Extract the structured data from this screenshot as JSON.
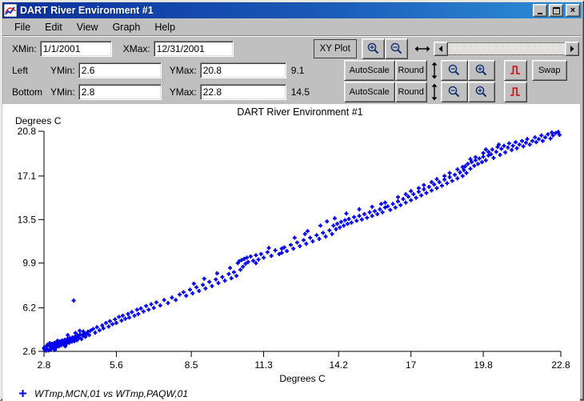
{
  "window": {
    "title": "DART River Environment #1",
    "buttons": {
      "minimize": "minimize",
      "maximize": "maximize",
      "close": "close"
    }
  },
  "menu": {
    "items": [
      "File",
      "Edit",
      "View",
      "Graph",
      "Help"
    ]
  },
  "toolbar": {
    "row1": {
      "xmin_label": "XMin:",
      "xmin_value": "1/1/2001",
      "xmax_label": "XMax:",
      "xmax_value": "12/31/2001",
      "xy_plot_label": "XY Plot"
    },
    "row2": {
      "axis_label": "Left",
      "ymin_label": "YMin:",
      "ymin_value": "2.6",
      "ymax_label": "YMax:",
      "ymax_value": "20.8",
      "cursor_value": "9.1",
      "autoscale_label": "AutoScale",
      "round_label": "Round",
      "swap_label": "Swap"
    },
    "row3": {
      "axis_label": "Bottom",
      "ymin_label": "YMin:",
      "ymin_value": "2.8",
      "ymax_label": "YMax:",
      "ymax_value": "22.8",
      "cursor_value": "14.5",
      "autoscale_label": "AutoScale",
      "round_label": "Round"
    },
    "icons": {
      "zoom_in": "magnifier-plus",
      "zoom_out": "magnifier-minus",
      "h_range": "left-right-arrow",
      "v_range": "up-down-arrow",
      "timeseries": "red-step-waveform",
      "scroll_left": "left-triangle",
      "scroll_right": "right-triangle"
    }
  },
  "chart_data": {
    "type": "scatter",
    "title": "DART River Environment #1",
    "xlabel": "Degrees C",
    "ylabel": "Degrees C",
    "xlim": [
      2.8,
      22.8
    ],
    "ylim": [
      2.6,
      20.8
    ],
    "xticks": [
      2.8,
      5.6,
      8.5,
      11.3,
      14.2,
      17,
      19.8,
      22.8
    ],
    "yticks": [
      2.6,
      6.2,
      9.9,
      13.5,
      17.1,
      20.8
    ],
    "legend": "WTmp,MCN,01 vs WTmp,PAQW,01",
    "marker_color": "#0000ee",
    "grid": false,
    "points": [
      [
        2.8,
        2.9
      ],
      [
        2.85,
        2.72
      ],
      [
        2.9,
        3.05
      ],
      [
        2.92,
        2.8
      ],
      [
        3.0,
        3.1
      ],
      [
        2.98,
        2.68
      ],
      [
        3.05,
        2.95
      ],
      [
        3.1,
        3.22
      ],
      [
        3.08,
        2.78
      ],
      [
        3.15,
        3.0
      ],
      [
        3.2,
        3.3
      ],
      [
        3.18,
        2.88
      ],
      [
        3.25,
        3.12
      ],
      [
        3.3,
        3.35
      ],
      [
        3.28,
        2.95
      ],
      [
        3.35,
        3.18
      ],
      [
        3.4,
        3.42
      ],
      [
        3.38,
        3.02
      ],
      [
        3.45,
        3.25
      ],
      [
        3.5,
        3.5
      ],
      [
        3.48,
        3.12
      ],
      [
        3.55,
        3.3
      ],
      [
        3.6,
        3.55
      ],
      [
        3.58,
        3.18
      ],
      [
        3.65,
        3.4
      ],
      [
        3.7,
        3.62
      ],
      [
        3.68,
        3.25
      ],
      [
        3.75,
        3.48
      ],
      [
        3.8,
        3.7
      ],
      [
        3.78,
        3.32
      ],
      [
        3.85,
        3.55
      ],
      [
        3.9,
        3.75
      ],
      [
        3.88,
        3.4
      ],
      [
        3.95,
        3.62
      ],
      [
        4.0,
        3.82
      ],
      [
        3.98,
        3.45
      ],
      [
        4.05,
        3.7
      ],
      [
        4.1,
        3.92
      ],
      [
        4.08,
        3.52
      ],
      [
        4.15,
        3.75
      ],
      [
        4.2,
        4.0
      ],
      [
        4.25,
        3.62
      ],
      [
        4.3,
        3.9
      ],
      [
        4.35,
        4.12
      ],
      [
        4.4,
        3.8
      ],
      [
        4.45,
        4.05
      ],
      [
        4.5,
        4.22
      ],
      [
        4.55,
        3.95
      ],
      [
        4.6,
        4.3
      ],
      [
        3.22,
        2.72
      ],
      [
        3.62,
        3.02
      ],
      [
        2.88,
        2.65
      ],
      [
        4.32,
        4.25
      ],
      [
        3.02,
        3.28
      ],
      [
        4.02,
        4.12
      ],
      [
        2.95,
        3.18
      ],
      [
        3.32,
        3.48
      ],
      [
        3.72,
        3.95
      ],
      [
        4.18,
        4.3
      ],
      [
        2.82,
        2.78
      ],
      [
        3.95,
        6.8
      ],
      [
        4.7,
        4.45
      ],
      [
        4.78,
        4.15
      ],
      [
        4.85,
        4.6
      ],
      [
        4.95,
        4.35
      ],
      [
        5.05,
        4.75
      ],
      [
        5.1,
        4.5
      ],
      [
        5.2,
        4.95
      ],
      [
        5.3,
        4.65
      ],
      [
        5.35,
        5.1
      ],
      [
        5.45,
        4.85
      ],
      [
        5.55,
        5.25
      ],
      [
        5.6,
        4.95
      ],
      [
        5.7,
        5.45
      ],
      [
        5.8,
        5.15
      ],
      [
        5.85,
        5.55
      ],
      [
        5.95,
        5.3
      ],
      [
        6.05,
        5.7
      ],
      [
        6.1,
        5.4
      ],
      [
        6.2,
        5.85
      ],
      [
        6.3,
        5.55
      ],
      [
        6.4,
        6.05
      ],
      [
        6.45,
        5.7
      ],
      [
        6.55,
        6.15
      ],
      [
        6.65,
        5.9
      ],
      [
        6.75,
        6.35
      ],
      [
        6.85,
        6.05
      ],
      [
        6.95,
        6.5
      ],
      [
        7.05,
        6.2
      ],
      [
        7.15,
        6.65
      ],
      [
        7.3,
        6.4
      ],
      [
        7.45,
        6.85
      ],
      [
        7.6,
        6.6
      ],
      [
        7.75,
        7.05
      ],
      [
        7.9,
        6.85
      ],
      [
        8.05,
        7.3
      ],
      [
        8.2,
        7.5
      ],
      [
        8.3,
        7.2
      ],
      [
        8.45,
        7.7
      ],
      [
        8.55,
        7.4
      ],
      [
        8.7,
        7.9
      ],
      [
        8.8,
        7.6
      ],
      [
        8.95,
        8.1
      ],
      [
        9.05,
        7.8
      ],
      [
        9.2,
        8.35
      ],
      [
        9.3,
        8.0
      ],
      [
        9.45,
        8.55
      ],
      [
        9.55,
        8.25
      ],
      [
        9.7,
        8.75
      ],
      [
        9.8,
        8.45
      ],
      [
        9.95,
        9.0
      ],
      [
        10.05,
        8.65
      ],
      [
        10.15,
        9.15
      ],
      [
        10.25,
        8.85
      ],
      [
        10.3,
        9.9
      ],
      [
        10.35,
        10.05
      ],
      [
        10.4,
        9.35
      ],
      [
        10.45,
        10.15
      ],
      [
        10.5,
        9.6
      ],
      [
        10.55,
        10.25
      ],
      [
        10.6,
        9.85
      ],
      [
        10.65,
        10.35
      ],
      [
        10.7,
        10.0
      ],
      [
        10.8,
        10.45
      ],
      [
        10.9,
        10.1
      ],
      [
        11.0,
        10.55
      ],
      [
        11.1,
        10.2
      ],
      [
        11.2,
        10.65
      ],
      [
        11.3,
        10.35
      ],
      [
        11.45,
        10.8
      ],
      [
        11.6,
        10.5
      ],
      [
        11.75,
        10.95
      ],
      [
        11.9,
        10.65
      ],
      [
        12.0,
        11.1
      ],
      [
        9.0,
        8.6
      ],
      [
        9.5,
        9.05
      ],
      [
        10.0,
        9.5
      ],
      [
        11.0,
        9.9
      ],
      [
        11.5,
        11.15
      ],
      [
        8.6,
        8.2
      ],
      [
        12.0,
        10.75
      ],
      [
        12.1,
        11.2
      ],
      [
        12.2,
        10.9
      ],
      [
        12.35,
        11.4
      ],
      [
        12.45,
        11.1
      ],
      [
        12.6,
        11.6
      ],
      [
        12.7,
        11.3
      ],
      [
        12.85,
        11.8
      ],
      [
        12.95,
        11.5
      ],
      [
        13.1,
        12.0
      ],
      [
        13.2,
        11.7
      ],
      [
        13.35,
        12.2
      ],
      [
        13.45,
        11.9
      ],
      [
        13.6,
        12.4
      ],
      [
        13.7,
        12.1
      ],
      [
        13.85,
        12.6
      ],
      [
        13.95,
        12.3
      ],
      [
        14.0,
        13.0
      ],
      [
        14.1,
        12.7
      ],
      [
        14.15,
        13.15
      ],
      [
        14.25,
        12.85
      ],
      [
        14.3,
        13.3
      ],
      [
        14.4,
        13.0
      ],
      [
        14.45,
        13.45
      ],
      [
        14.55,
        13.15
      ],
      [
        14.6,
        13.55
      ],
      [
        14.7,
        13.25
      ],
      [
        14.8,
        13.7
      ],
      [
        14.9,
        13.4
      ],
      [
        15.0,
        13.8
      ],
      [
        15.1,
        13.5
      ],
      [
        15.2,
        13.95
      ],
      [
        15.3,
        13.65
      ],
      [
        15.4,
        14.1
      ],
      [
        15.5,
        13.8
      ],
      [
        15.6,
        14.2
      ],
      [
        15.7,
        13.95
      ],
      [
        15.8,
        14.35
      ],
      [
        15.9,
        14.1
      ],
      [
        16.0,
        14.5
      ],
      [
        12.5,
        12.0
      ],
      [
        13.0,
        12.55
      ],
      [
        13.5,
        13.0
      ],
      [
        14.5,
        14.0
      ],
      [
        15.0,
        14.35
      ],
      [
        15.5,
        14.55
      ],
      [
        12.9,
        12.3
      ],
      [
        14.05,
        13.6
      ],
      [
        15.85,
        14.8
      ],
      [
        13.75,
        13.35
      ],
      [
        16.0,
        14.9
      ],
      [
        16.1,
        14.6
      ],
      [
        16.2,
        14.3
      ],
      [
        16.3,
        14.8
      ],
      [
        16.4,
        14.5
      ],
      [
        16.5,
        15.0
      ],
      [
        16.6,
        14.7
      ],
      [
        16.7,
        15.2
      ],
      [
        16.8,
        14.9
      ],
      [
        16.9,
        15.4
      ],
      [
        17.0,
        15.1
      ],
      [
        17.1,
        15.6
      ],
      [
        17.2,
        15.3
      ],
      [
        17.3,
        15.8
      ],
      [
        17.4,
        15.5
      ],
      [
        17.5,
        16.0
      ],
      [
        17.6,
        15.7
      ],
      [
        17.7,
        16.2
      ],
      [
        17.8,
        15.9
      ],
      [
        17.9,
        16.4
      ],
      [
        18.0,
        16.1
      ],
      [
        18.1,
        16.6
      ],
      [
        18.2,
        16.3
      ],
      [
        18.3,
        16.8
      ],
      [
        18.4,
        16.5
      ],
      [
        18.5,
        17.0
      ],
      [
        18.6,
        16.7
      ],
      [
        18.7,
        17.2
      ],
      [
        18.8,
        16.9
      ],
      [
        18.9,
        17.4
      ],
      [
        19.0,
        17.1
      ],
      [
        19.05,
        17.6
      ],
      [
        19.1,
        17.9
      ],
      [
        19.15,
        17.35
      ],
      [
        19.2,
        18.1
      ],
      [
        19.3,
        17.7
      ],
      [
        19.35,
        18.25
      ],
      [
        19.45,
        17.95
      ],
      [
        19.5,
        18.4
      ],
      [
        19.6,
        18.1
      ],
      [
        19.65,
        18.55
      ],
      [
        19.75,
        18.25
      ],
      [
        19.8,
        18.7
      ],
      [
        19.9,
        18.4
      ],
      [
        20.0,
        18.8
      ],
      [
        16.5,
        15.35
      ],
      [
        17.0,
        15.85
      ],
      [
        17.5,
        16.35
      ],
      [
        18.0,
        16.85
      ],
      [
        18.5,
        17.35
      ],
      [
        19.0,
        17.85
      ],
      [
        19.5,
        18.65
      ],
      [
        20.0,
        19.1
      ],
      [
        16.8,
        15.6
      ],
      [
        17.3,
        16.1
      ],
      [
        17.8,
        16.6
      ],
      [
        18.3,
        17.1
      ],
      [
        18.8,
        17.65
      ],
      [
        19.3,
        18.5
      ],
      [
        19.8,
        19.0
      ],
      [
        19.9,
        19.3
      ],
      [
        20.1,
        18.9
      ],
      [
        20.15,
        19.3
      ],
      [
        20.2,
        18.6
      ],
      [
        20.3,
        19.1
      ],
      [
        20.35,
        19.5
      ],
      [
        20.45,
        18.85
      ],
      [
        20.5,
        19.35
      ],
      [
        20.6,
        19.6
      ],
      [
        20.65,
        19.05
      ],
      [
        20.75,
        19.45
      ],
      [
        20.8,
        19.8
      ],
      [
        20.9,
        19.25
      ],
      [
        20.95,
        19.6
      ],
      [
        21.05,
        19.9
      ],
      [
        21.1,
        19.4
      ],
      [
        21.2,
        19.7
      ],
      [
        21.3,
        20.0
      ],
      [
        21.35,
        19.55
      ],
      [
        21.45,
        19.85
      ],
      [
        21.5,
        20.15
      ],
      [
        21.6,
        19.7
      ],
      [
        21.7,
        20.0
      ],
      [
        21.8,
        20.3
      ],
      [
        21.85,
        19.9
      ],
      [
        21.95,
        20.15
      ],
      [
        22.05,
        20.45
      ],
      [
        22.1,
        20.0
      ],
      [
        22.2,
        20.3
      ],
      [
        22.3,
        20.55
      ],
      [
        22.4,
        20.2
      ],
      [
        22.5,
        20.45
      ],
      [
        22.6,
        20.65
      ],
      [
        22.7,
        20.75
      ],
      [
        22.75,
        20.5
      ],
      [
        22.45,
        20.7
      ],
      [
        20.4,
        19.7
      ]
    ]
  }
}
